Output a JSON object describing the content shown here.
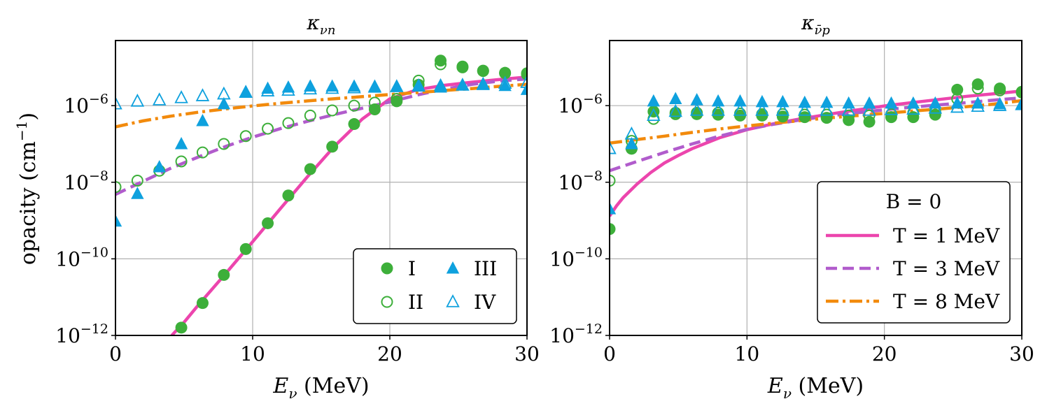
{
  "figure": {
    "ylabel_prefix": "opacity (cm",
    "ylabel_exp": "−1",
    "ylabel_suffix": ")",
    "xlabel_var": "E",
    "xlabel_sub": "ν",
    "xlabel_unit": " (MeV)",
    "colors": {
      "I": "#3daf3a",
      "II": "#3daf3a",
      "III": "#0ea1de",
      "IV": "#0ea1de",
      "T1": "#ec45ad",
      "T3": "#b15ccc",
      "T8": "#f28a0c",
      "grid": "#b0b0b0"
    }
  },
  "chart_data": [
    {
      "type": "scatter",
      "title_main": "κ",
      "title_sub": "νn",
      "xlim": [
        0,
        30
      ],
      "ylim_log10": [
        -12,
        -4.3
      ],
      "yscale": "log",
      "grid": true,
      "xticks": [
        0,
        10,
        20,
        30
      ],
      "ytick_exponents": [
        -12,
        -10,
        -8,
        -6
      ],
      "legend_position": "lower-right",
      "legend": [
        {
          "label": "I",
          "series": "I"
        },
        {
          "label": "III",
          "series": "III"
        },
        {
          "label": "II",
          "series": "II"
        },
        {
          "label": "IV",
          "series": "IV"
        }
      ],
      "markers": [
        {
          "name": "I",
          "marker": "circle-filled",
          "color": "#3daf3a",
          "x": [
            4.8,
            6.35,
            7.9,
            9.5,
            11.1,
            12.6,
            14.2,
            15.8,
            17.4,
            18.9,
            20.5,
            22.1,
            23.7,
            25.3,
            26.8,
            28.4,
            30.0
          ],
          "y": [
            1.6e-12,
            7e-12,
            3.8e-11,
            1.8e-10,
            8.5e-10,
            4.5e-09,
            2.2e-08,
            8.5e-08,
            3.3e-07,
            8e-07,
            1.3e-06,
            3.5e-06,
            1.5e-05,
            1.05e-05,
            8.2e-06,
            7.2e-06,
            7e-06
          ]
        },
        {
          "name": "II",
          "marker": "circle-open",
          "color": "#3daf3a",
          "x": [
            0,
            1.6,
            3.2,
            4.8,
            6.35,
            7.9,
            9.5,
            11.1,
            12.6,
            14.2,
            15.8,
            17.4,
            18.9,
            20.5,
            22.1,
            23.7,
            25.3,
            26.8,
            28.4,
            30.0
          ],
          "y": [
            7.5e-09,
            1.1e-08,
            2e-08,
            3.5e-08,
            6e-08,
            1e-07,
            1.6e-07,
            2.5e-07,
            3.5e-07,
            5.5e-07,
            7.5e-07,
            1e-06,
            1.2e-06,
            1.5e-06,
            4.5e-06,
            1.2e-05,
            1e-05,
            8e-06,
            7e-06,
            6.5e-06
          ]
        },
        {
          "name": "III",
          "marker": "triangle-filled",
          "color": "#0ea1de",
          "x": [
            0,
            1.6,
            3.2,
            4.8,
            6.35,
            7.9,
            9.5,
            11.1,
            12.6,
            14.2,
            15.8,
            17.4,
            18.9,
            20.5,
            22.1,
            23.7,
            25.3,
            26.8,
            28.4,
            30.0
          ],
          "y": [
            9.5e-10,
            5e-09,
            2.5e-08,
            1e-07,
            4e-07,
            1.1e-06,
            2.3e-06,
            2.8e-06,
            3e-06,
            3.2e-06,
            3.2e-06,
            3.2e-06,
            3.2e-06,
            3.2e-06,
            3.4e-06,
            3e-06,
            3.4e-06,
            3.5e-06,
            3.3e-06,
            2.6e-06
          ]
        },
        {
          "name": "IV",
          "marker": "triangle-open",
          "color": "#0ea1de",
          "x": [
            0,
            1.6,
            3.2,
            4.8,
            6.35,
            7.9,
            9.5,
            11.1,
            12.6,
            14.2,
            15.8,
            17.4,
            18.9,
            20.5,
            22.1,
            23.7,
            25.3,
            26.8,
            28.4,
            30.0
          ],
          "y": [
            1.1e-06,
            1.3e-06,
            1.4e-06,
            1.6e-06,
            1.8e-06,
            2e-06,
            2.2e-06,
            2.4e-06,
            2.5e-06,
            2.7e-06,
            2.8e-06,
            2.9e-06,
            3e-06,
            3.1e-06,
            3.2e-06,
            3.3e-06,
            3.4e-06,
            3.6e-06,
            3.8e-06,
            4e-06
          ]
        }
      ],
      "lines": [
        {
          "name": "T1",
          "style": "solid",
          "color": "#ec45ad",
          "x": [
            4.1,
            5,
            6,
            8,
            10,
            12,
            14,
            16,
            18,
            20,
            22,
            24,
            26,
            28,
            30
          ],
          "y": [
            1e-12,
            2.2e-12,
            6e-12,
            4e-11,
            2.8e-10,
            2e-09,
            1.4e-08,
            9e-08,
            4.5e-07,
            1.5e-06,
            2.6e-06,
            3.4e-06,
            4.1e-06,
            4.8e-06,
            5.6e-06
          ]
        },
        {
          "name": "T3",
          "style": "dashed",
          "color": "#b15ccc",
          "x": [
            0,
            2,
            4,
            6,
            8,
            10,
            12,
            14,
            16,
            18,
            20,
            22,
            24,
            26,
            28,
            30
          ],
          "y": [
            4.8e-09,
            1.05e-08,
            2.3e-08,
            4.5e-08,
            8.5e-08,
            1.5e-07,
            2.5e-07,
            3.9e-07,
            5.9e-07,
            8.6e-07,
            1.25e-06,
            1.9e-06,
            2.7e-06,
            3.6e-06,
            4.4e-06,
            5e-06
          ]
        },
        {
          "name": "T8",
          "style": "dashdot",
          "color": "#f28a0c",
          "x": [
            0,
            2,
            4,
            6,
            8,
            10,
            12,
            14,
            16,
            18,
            20,
            22,
            24,
            26,
            28,
            30
          ],
          "y": [
            2.8e-07,
            4e-07,
            5.3e-07,
            6.7e-07,
            8.2e-07,
            9.8e-07,
            1.15e-06,
            1.33e-06,
            1.52e-06,
            1.72e-06,
            1.95e-06,
            2.2e-06,
            2.5e-06,
            2.8e-06,
            3.2e-06,
            3.6e-06
          ]
        }
      ]
    },
    {
      "type": "scatter",
      "title_main": "κ",
      "title_sub": "ν̄p",
      "xlim": [
        0,
        30
      ],
      "ylim_log10": [
        -12,
        -4.3
      ],
      "yscale": "log",
      "grid": true,
      "xticks": [
        0,
        10,
        20,
        30
      ],
      "ytick_exponents": [
        -12,
        -10,
        -8,
        -6
      ],
      "legend_position": "lower-right",
      "legend_title": "B = 0",
      "legend": [
        {
          "label": "T = 1 MeV",
          "series": "T1"
        },
        {
          "label": "T = 3 MeV",
          "series": "T3"
        },
        {
          "label": "T = 8 MeV",
          "series": "T8"
        }
      ],
      "markers": [
        {
          "name": "I",
          "marker": "circle-filled",
          "color": "#3daf3a",
          "x": [
            0,
            1.6,
            3.2,
            4.8,
            6.35,
            7.9,
            9.5,
            11.1,
            12.6,
            14.2,
            15.8,
            17.4,
            18.9,
            20.5,
            22.1,
            23.7,
            25.3,
            26.8,
            28.4,
            30.0
          ],
          "y": [
            6e-10,
            7.5e-08,
            7e-07,
            6.5e-07,
            6e-07,
            5.8e-07,
            5.5e-07,
            5.5e-07,
            5.2e-07,
            5e-07,
            4.8e-07,
            4.2e-07,
            3.8e-07,
            5e-07,
            5e-07,
            5.8e-07,
            2.6e-06,
            3.6e-06,
            2.8e-06,
            2.3e-06
          ]
        },
        {
          "name": "II",
          "marker": "circle-open",
          "color": "#3daf3a",
          "x": [
            0,
            1.6,
            3.2,
            4.8,
            6.35,
            7.9,
            9.5,
            11.1,
            12.6,
            14.2,
            15.8,
            17.4,
            18.9,
            20.5,
            22.1,
            23.7,
            25.3,
            26.8,
            28.4,
            30.0
          ],
          "y": [
            1.1e-08,
            1.2e-07,
            4.5e-07,
            6e-07,
            6.5e-07,
            6.5e-07,
            6.2e-07,
            6e-07,
            6e-07,
            5.8e-07,
            5.8e-07,
            5.5e-07,
            5.5e-07,
            6e-07,
            6.5e-07,
            7e-07,
            1.5e-06,
            2.8e-06,
            2.5e-06,
            2.2e-06
          ]
        },
        {
          "name": "III",
          "marker": "triangle-filled",
          "color": "#0ea1de",
          "x": [
            0,
            1.6,
            3.2,
            4.8,
            6.35,
            7.9,
            9.5,
            11.1,
            12.6,
            14.2,
            15.8,
            17.4,
            18.9,
            20.5,
            22.1,
            23.7,
            25.3,
            26.8,
            28.4,
            30.0
          ],
          "y": [
            2e-09,
            1e-07,
            1.3e-06,
            1.5e-06,
            1.4e-06,
            1.3e-06,
            1.3e-06,
            1.25e-06,
            1.25e-06,
            1.2e-06,
            1.2e-06,
            1.15e-06,
            1.15e-06,
            1.15e-06,
            1.15e-06,
            1.15e-06,
            1.15e-06,
            1.15e-06,
            1.1e-06,
            1.1e-06
          ]
        },
        {
          "name": "IV",
          "marker": "triangle-open",
          "color": "#0ea1de",
          "x": [
            0,
            1.6,
            3.2,
            4.8,
            6.35,
            7.9,
            9.5,
            11.1,
            12.6,
            14.2,
            15.8,
            17.4,
            18.9,
            20.5,
            22.1,
            23.7,
            25.3,
            26.8,
            28.4,
            30.0
          ],
          "y": [
            7.5e-08,
            1.8e-07,
            5.5e-07,
            7e-07,
            7.5e-07,
            7.5e-07,
            7.5e-07,
            7.5e-07,
            7.5e-07,
            7.5e-07,
            7.5e-07,
            7.5e-07,
            7.5e-07,
            7.8e-07,
            8e-07,
            8.5e-07,
            9e-07,
            9.5e-07,
            1e-06,
            1.05e-06
          ]
        }
      ],
      "lines": [
        {
          "name": "T1",
          "style": "solid",
          "color": "#ec45ad",
          "x": [
            0,
            0.5,
            1,
            2,
            3,
            4,
            5,
            6,
            8,
            10,
            12,
            14,
            16,
            18,
            20,
            22,
            24,
            26,
            28,
            30
          ],
          "y": [
            1.3e-09,
            2.4e-09,
            4e-09,
            9e-09,
            1.8e-08,
            3.2e-08,
            5e-08,
            7.5e-08,
            1.45e-07,
            2.35e-07,
            3.4e-07,
            4.6e-07,
            6e-07,
            7.7e-07,
            9.8e-07,
            1.2e-06,
            1.45e-06,
            1.75e-06,
            2.05e-06,
            2.4e-06
          ]
        },
        {
          "name": "T3",
          "style": "dashed",
          "color": "#b15ccc",
          "x": [
            0,
            2,
            4,
            6,
            8,
            10,
            12,
            14,
            16,
            18,
            20,
            22,
            24,
            26,
            28,
            30
          ],
          "y": [
            2e-08,
            3.5e-08,
            6e-08,
            1e-07,
            1.6e-07,
            2.4e-07,
            3.3e-07,
            4.3e-07,
            5.4e-07,
            6.5e-07,
            7.8e-07,
            9.1e-07,
            1.05e-06,
            1.2e-06,
            1.4e-06,
            1.6e-06
          ]
        },
        {
          "name": "T8",
          "style": "dashdot",
          "color": "#f28a0c",
          "x": [
            0,
            2,
            4,
            6,
            8,
            10,
            12,
            14,
            16,
            18,
            20,
            22,
            24,
            26,
            28,
            30
          ],
          "y": [
            1.05e-07,
            1.3e-07,
            1.6e-07,
            2e-07,
            2.45e-07,
            2.95e-07,
            3.5e-07,
            4.1e-07,
            4.8e-07,
            5.5e-07,
            6.3e-07,
            7.2e-07,
            8.2e-07,
            9.4e-07,
            1.1e-06,
            1.35e-06
          ]
        }
      ]
    }
  ]
}
